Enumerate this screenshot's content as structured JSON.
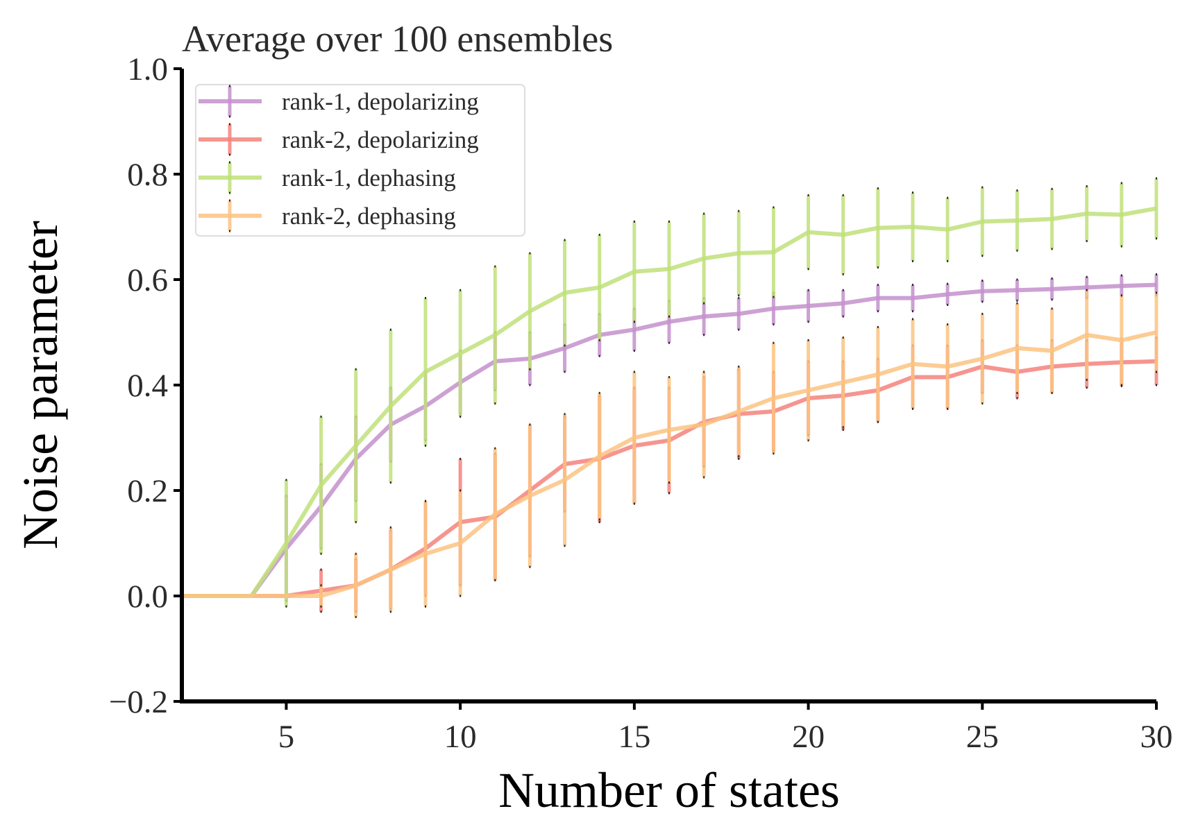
{
  "chart_data": {
    "type": "line",
    "title": "Average over 100 ensembles",
    "xlabel": "Number of states",
    "ylabel": "Noise parameter",
    "xlim": [
      2,
      30
    ],
    "ylim": [
      -0.2,
      1.0
    ],
    "xticks": [
      5,
      10,
      15,
      20,
      25,
      30
    ],
    "yticks": [
      -0.2,
      0.0,
      0.2,
      0.4,
      0.6,
      0.8,
      1.0
    ],
    "ytick_labels": [
      "−0.2",
      "0.0",
      "0.2",
      "0.4",
      "0.6",
      "0.8",
      "1.0"
    ],
    "grid": false,
    "legend": "top-left",
    "x": [
      2,
      3,
      4,
      5,
      6,
      7,
      8,
      9,
      10,
      11,
      12,
      13,
      14,
      15,
      16,
      17,
      18,
      19,
      20,
      21,
      22,
      23,
      24,
      25,
      26,
      27,
      28,
      29,
      30
    ],
    "series": [
      {
        "name": "rank-1, depolarizing",
        "color": "#c490cc",
        "values": [
          0,
          0,
          0,
          0.09,
          0.17,
          0.26,
          0.325,
          0.36,
          0.405,
          0.445,
          0.45,
          0.47,
          0.495,
          0.505,
          0.52,
          0.53,
          0.535,
          0.545,
          0.55,
          0.555,
          0.565,
          0.565,
          0.572,
          0.578,
          0.58,
          0.582,
          0.585,
          0.588,
          0.59
        ],
        "errors": [
          0,
          0,
          0,
          0.1,
          0.08,
          0.08,
          0.07,
          0.065,
          0.06,
          0.055,
          0.05,
          0.045,
          0.04,
          0.04,
          0.04,
          0.035,
          0.03,
          0.03,
          0.03,
          0.025,
          0.025,
          0.025,
          0.02,
          0.02,
          0.02,
          0.02,
          0.02,
          0.02,
          0.02
        ]
      },
      {
        "name": "rank-2, depolarizing",
        "color": "#f4837d",
        "values": [
          0,
          0,
          0,
          0,
          0.01,
          0.02,
          0.05,
          0.09,
          0.14,
          0.15,
          0.2,
          0.25,
          0.26,
          0.285,
          0.295,
          0.33,
          0.345,
          0.35,
          0.375,
          0.38,
          0.39,
          0.415,
          0.415,
          0.435,
          0.425,
          0.435,
          0.44,
          0.443,
          0.445
        ],
        "errors": [
          0,
          0,
          0,
          0,
          0.04,
          0.05,
          0.075,
          0.09,
          0.12,
          0.12,
          0.125,
          0.09,
          0.12,
          0.11,
          0.1,
          0.085,
          0.085,
          0.075,
          0.07,
          0.065,
          0.06,
          0.06,
          0.06,
          0.05,
          0.05,
          0.05,
          0.045,
          0.045,
          0.045
        ]
      },
      {
        "name": "rank-1, dephasing",
        "color": "#bfe07a",
        "values": [
          0,
          0,
          0,
          0.1,
          0.21,
          0.285,
          0.36,
          0.425,
          0.46,
          0.495,
          0.54,
          0.575,
          0.585,
          0.615,
          0.62,
          0.64,
          0.65,
          0.652,
          0.69,
          0.685,
          0.698,
          0.7,
          0.695,
          0.71,
          0.712,
          0.715,
          0.725,
          0.723,
          0.735
        ],
        "errors": [
          0,
          0,
          0,
          0.12,
          0.13,
          0.145,
          0.145,
          0.14,
          0.12,
          0.13,
          0.11,
          0.1,
          0.1,
          0.095,
          0.09,
          0.085,
          0.08,
          0.085,
          0.07,
          0.075,
          0.075,
          0.065,
          0.06,
          0.065,
          0.057,
          0.057,
          0.052,
          0.06,
          0.057
        ]
      },
      {
        "name": "rank-2, dephasing",
        "color": "#fcc381",
        "values": [
          0,
          0,
          0,
          0,
          0,
          0.02,
          0.05,
          0.08,
          0.1,
          0.155,
          0.19,
          0.22,
          0.265,
          0.3,
          0.315,
          0.325,
          0.35,
          0.375,
          0.39,
          0.405,
          0.42,
          0.44,
          0.435,
          0.45,
          0.47,
          0.465,
          0.495,
          0.485,
          0.5
        ],
        "errors": [
          0,
          0,
          0,
          0,
          0.02,
          0.06,
          0.08,
          0.1,
          0.1,
          0.125,
          0.135,
          0.125,
          0.12,
          0.125,
          0.1,
          0.1,
          0.085,
          0.105,
          0.095,
          0.085,
          0.09,
          0.085,
          0.08,
          0.085,
          0.085,
          0.08,
          0.085,
          0.085,
          0.075
        ]
      }
    ]
  }
}
